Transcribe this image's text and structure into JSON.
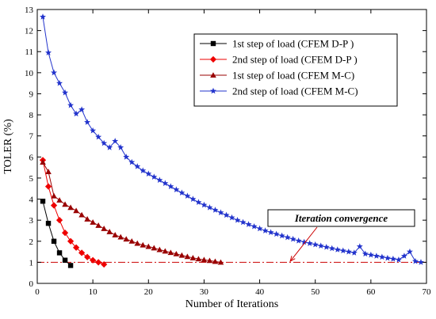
{
  "chart_data": {
    "type": "line",
    "xlabel": "Number of Iterations",
    "ylabel": "TOLER (%)",
    "xlim": [
      0,
      70
    ],
    "ylim": [
      0,
      13
    ],
    "xticks": [
      0,
      10,
      20,
      30,
      40,
      50,
      60,
      70
    ],
    "yticks": [
      0,
      1,
      2,
      3,
      4,
      5,
      6,
      7,
      8,
      9,
      10,
      11,
      12,
      13
    ],
    "grid": false,
    "legend_position": "top-right",
    "threshold": {
      "y": 1,
      "color": "#cc0000",
      "style": "dash-dot"
    },
    "annotation": {
      "text": "Iteration convergence",
      "arrow_to": [
        45.5,
        1.05
      ]
    },
    "series": [
      {
        "name": "1st  step of load (CFEM D-P )",
        "color": "#000000",
        "marker": "square",
        "x": [
          1,
          2,
          3,
          4,
          5,
          6
        ],
        "y": [
          3.9,
          2.85,
          2.0,
          1.45,
          1.1,
          0.85
        ]
      },
      {
        "name": "2nd step of load (CFEM D-P )",
        "color": "#ee0000",
        "marker": "diamond",
        "x": [
          1,
          2,
          3,
          4,
          5,
          6,
          7,
          8,
          9,
          10,
          11,
          12
        ],
        "y": [
          5.85,
          4.6,
          3.7,
          3.0,
          2.4,
          2.0,
          1.7,
          1.45,
          1.25,
          1.1,
          1.0,
          0.9
        ]
      },
      {
        "name": "1st  step of load (CFEM M-C)",
        "color": "#990000",
        "marker": "triangle",
        "x": [
          1,
          2,
          3,
          4,
          5,
          6,
          7,
          8,
          9,
          10,
          11,
          12,
          13,
          14,
          15,
          16,
          17,
          18,
          19,
          20,
          21,
          22,
          23,
          24,
          25,
          26,
          27,
          28,
          29,
          30,
          31,
          32,
          33
        ],
        "y": [
          5.75,
          5.3,
          4.15,
          3.95,
          3.75,
          3.6,
          3.45,
          3.25,
          3.05,
          2.9,
          2.75,
          2.6,
          2.45,
          2.3,
          2.2,
          2.1,
          2.0,
          1.9,
          1.82,
          1.75,
          1.68,
          1.6,
          1.53,
          1.46,
          1.4,
          1.33,
          1.27,
          1.21,
          1.16,
          1.12,
          1.08,
          1.04,
          1.0
        ]
      },
      {
        "name": "2nd step of load (CFEM M-C)",
        "color": "#2233cc",
        "marker": "star",
        "x": [
          1,
          2,
          3,
          4,
          5,
          6,
          7,
          8,
          9,
          10,
          11,
          12,
          13,
          14,
          15,
          16,
          17,
          18,
          19,
          20,
          21,
          22,
          23,
          24,
          25,
          26,
          27,
          28,
          29,
          30,
          31,
          32,
          33,
          34,
          35,
          36,
          37,
          38,
          39,
          40,
          41,
          42,
          43,
          44,
          45,
          46,
          47,
          48,
          49,
          50,
          51,
          52,
          53,
          54,
          55,
          56,
          57,
          58,
          59,
          60,
          61,
          62,
          63,
          64,
          65,
          66,
          67,
          68,
          69
        ],
        "y": [
          12.65,
          10.95,
          10.0,
          9.5,
          9.05,
          8.45,
          8.05,
          8.25,
          7.65,
          7.25,
          6.95,
          6.65,
          6.45,
          6.75,
          6.45,
          6.0,
          5.75,
          5.55,
          5.35,
          5.2,
          5.05,
          4.9,
          4.75,
          4.6,
          4.45,
          4.3,
          4.15,
          4.0,
          3.85,
          3.72,
          3.6,
          3.48,
          3.36,
          3.24,
          3.12,
          3.0,
          2.9,
          2.8,
          2.7,
          2.6,
          2.5,
          2.42,
          2.34,
          2.26,
          2.18,
          2.1,
          2.02,
          1.96,
          1.9,
          1.84,
          1.78,
          1.72,
          1.66,
          1.6,
          1.55,
          1.5,
          1.45,
          1.75,
          1.4,
          1.35,
          1.3,
          1.25,
          1.2,
          1.16,
          1.12,
          1.3,
          1.5,
          1.05,
          1.0
        ]
      }
    ]
  }
}
